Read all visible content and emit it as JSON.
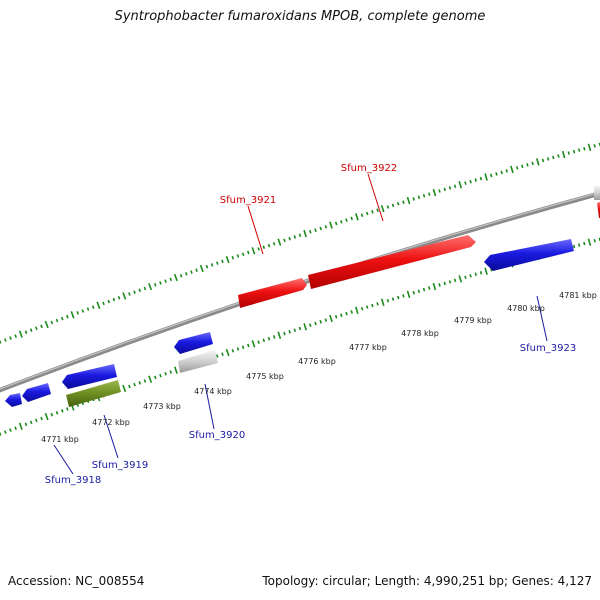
{
  "title": "Syntrophobacter fumaroxidans MPOB, complete genome",
  "footer": {
    "accession": "Accession: NC_008554",
    "summary": "Topology: circular; Length: 4,990,251 bp; Genes: 4,127"
  },
  "colors": {
    "forward_gene": "#ee1111",
    "reverse_gene": "#1a1ae0",
    "other_gene": "#c8c8c8",
    "rna_gene": "#6e8e22",
    "tick": "#1c8a1c",
    "backbone": "#8a8a8a",
    "label_forward": "#cc0000",
    "label_reverse": "#1a1aa0"
  },
  "kbp_labels": [
    "4771 kbp",
    "4772 kbp",
    "4773 kbp",
    "4774 kbp",
    "4775 kbp",
    "4776 kbp",
    "4777 kbp",
    "4778 kbp",
    "4779 kbp",
    "4780 kbp",
    "4781 kbp"
  ],
  "gene_labels": {
    "sfum_3918": "Sfum_3918",
    "sfum_3919": "Sfum_3919",
    "sfum_3920": "Sfum_3920",
    "sfum_3921": "Sfum_3921",
    "sfum_3922": "Sfum_3922",
    "sfum_3923": "Sfum_3923"
  }
}
